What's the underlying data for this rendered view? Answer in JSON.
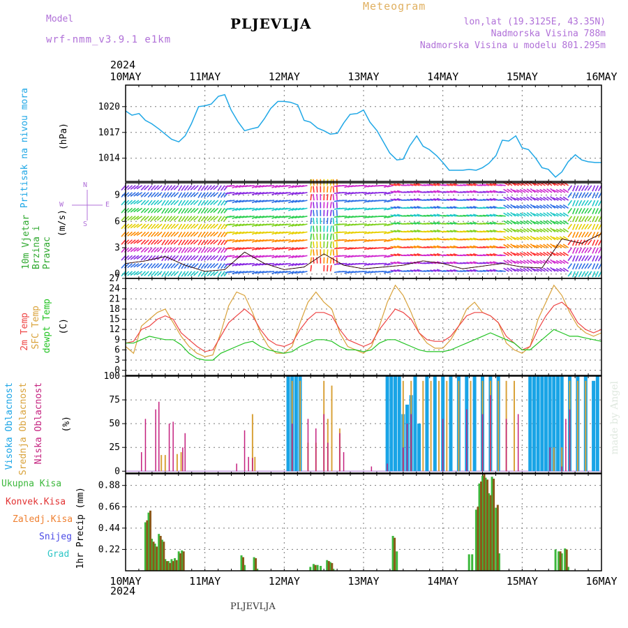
{
  "header": {
    "model_label": "Model",
    "model_name": "wrf-nmm_v3.9.1  e1km",
    "station": "PLJEVLJA",
    "product": "Meteogram",
    "lonlat": "lon,lat (19.3125E, 43.35N)",
    "elevation": "Nadmorska Visina 788m",
    "model_elevation": "Nadmorska Visina u modelu 801.295m",
    "year": "2024",
    "footer_station": "PLJEVLJA",
    "credit": "made by Angel"
  },
  "colors": {
    "pressure": "#1fa7e6",
    "t2m": "#ee4444",
    "tsfc": "#d9a23a",
    "dewpt": "#22c322",
    "high_cloud": "#19a4e6",
    "mid_cloud": "#d9a23a",
    "low_cloud": "#c4207e",
    "total_precip": "#3cb83c",
    "conv_precip": "#e23232",
    "frz_precip": "#ef7f2f",
    "snow": "#4a4ae6",
    "graupel": "#2dc6c6",
    "wind_label": "#2ea82e",
    "compass": "#b070d8"
  },
  "chart_data": [
    {
      "type": "line",
      "panel": "pressure",
      "ylabel": "Pritisak na nivou mora",
      "unit": "(hPa)",
      "yticks": [
        1014,
        1017,
        1020
      ],
      "ylim": [
        1011.3,
        1022.5
      ],
      "x_days": [
        "10MAY",
        "11MAY",
        "12MAY",
        "13MAY",
        "14MAY",
        "15MAY",
        "16MAY"
      ],
      "series": [
        {
          "x": [
            0,
            0.08,
            0.17,
            0.25,
            0.33,
            0.42,
            0.5,
            0.58,
            0.67,
            0.75,
            0.83,
            0.92,
            1,
            1.08,
            1.17,
            1.25,
            1.33,
            1.42,
            1.5,
            1.58,
            1.67,
            1.75,
            1.83,
            1.92,
            2,
            2.08,
            2.17,
            2.25,
            2.33,
            2.42,
            2.5,
            2.58,
            2.67,
            2.75,
            2.83,
            2.92,
            3,
            3.08,
            3.17,
            3.25,
            3.33,
            3.42,
            3.5,
            3.58,
            3.67,
            3.75,
            3.83,
            3.92,
            4,
            4.08,
            4.17,
            4.25,
            4.33,
            4.42,
            4.5,
            4.58,
            4.67,
            4.75,
            4.83,
            4.92,
            5,
            5.08,
            5.17,
            5.25,
            5.33,
            5.42,
            5.5,
            5.58,
            5.67,
            5.75,
            5.83,
            5.92,
            6
          ],
          "values": [
            1019.5,
            1019,
            1019.2,
            1018.4,
            1018,
            1017.4,
            1016.8,
            1016.2,
            1015.9,
            1016.6,
            1018,
            1020,
            1020.1,
            1020.3,
            1021.2,
            1021.4,
            1019.6,
            1018.2,
            1017.2,
            1017.4,
            1017.6,
            1018.6,
            1019.8,
            1020.6,
            1020.6,
            1020.5,
            1020.2,
            1018.4,
            1018.2,
            1017.5,
            1017.2,
            1016.8,
            1016.9,
            1018.1,
            1019.1,
            1019.2,
            1019.6,
            1018.2,
            1017.2,
            1015.9,
            1014.6,
            1013.8,
            1013.9,
            1015.4,
            1016.6,
            1015.4,
            1015.0,
            1014.3,
            1013.5,
            1012.6,
            1012.6,
            1012.6,
            1012.7,
            1012.6,
            1012.9,
            1013.4,
            1014.3,
            1016.1,
            1016.0,
            1016.6,
            1015.2,
            1015.0,
            1014.0,
            1012.9,
            1012.7,
            1011.8,
            1012.4,
            1013.6,
            1014.4,
            1013.8,
            1013.6,
            1013.5,
            1013.5
          ]
        }
      ]
    },
    {
      "type": "vector",
      "panel": "wind",
      "ylabel": "10m Vjetar Brzina i Pravac",
      "unit": "(m/s)",
      "compass": [
        "W",
        "E",
        "N",
        "S"
      ],
      "yticks": [
        0,
        3,
        6,
        9
      ],
      "ylim": [
        -0.5,
        10.4
      ],
      "series": [
        {
          "name": "speed",
          "x": [
            0,
            0.25,
            0.5,
            0.75,
            1,
            1.25,
            1.5,
            1.75,
            2,
            2.25,
            2.5,
            2.75,
            3,
            3.25,
            3.5,
            3.75,
            4,
            4.25,
            4.5,
            4.75,
            5,
            5.25,
            5.5,
            5.75,
            6
          ],
          "values": [
            1.2,
            1.5,
            2.0,
            1.0,
            0.3,
            0.5,
            2.5,
            1.2,
            0.5,
            0.8,
            2.3,
            1.0,
            0.6,
            0.8,
            1.0,
            1.5,
            1.2,
            0.6,
            0.9,
            1.2,
            0.8,
            0.7,
            4.0,
            3.5,
            4.6
          ]
        }
      ],
      "direction_regimes": [
        {
          "from": 0.0,
          "to": 0.3,
          "deg": 230
        },
        {
          "from": 0.3,
          "to": 1.3,
          "deg": 220
        },
        {
          "from": 1.3,
          "to": 2.3,
          "deg": 255
        },
        {
          "from": 2.3,
          "to": 2.7,
          "deg": 0
        },
        {
          "from": 2.7,
          "to": 3.4,
          "deg": 260
        },
        {
          "from": 3.4,
          "to": 4.8,
          "deg": 280
        },
        {
          "from": 4.8,
          "to": 5.6,
          "deg": 300
        },
        {
          "from": 5.6,
          "to": 6.0,
          "deg": 210
        }
      ]
    },
    {
      "type": "line",
      "panel": "temperature",
      "ylabel_lines": [
        "2m Temp",
        "SFC Temp",
        "dewpt Temp"
      ],
      "unit": "(C)",
      "yticks": [
        0,
        3,
        6,
        9,
        12,
        15,
        18,
        21,
        24,
        27
      ],
      "ylim": [
        -1.5,
        27
      ],
      "x": [
        0,
        0.1,
        0.2,
        0.3,
        0.4,
        0.5,
        0.6,
        0.7,
        0.8,
        0.9,
        1,
        1.1,
        1.2,
        1.3,
        1.4,
        1.5,
        1.6,
        1.7,
        1.8,
        1.9,
        2,
        2.1,
        2.2,
        2.3,
        2.4,
        2.5,
        2.6,
        2.7,
        2.8,
        2.9,
        3,
        3.1,
        3.2,
        3.3,
        3.4,
        3.5,
        3.6,
        3.7,
        3.8,
        3.9,
        4,
        4.1,
        4.2,
        4.3,
        4.4,
        4.5,
        4.6,
        4.7,
        4.8,
        4.9,
        5,
        5.1,
        5.2,
        5.3,
        5.4,
        5.5,
        5.6,
        5.7,
        5.8,
        5.9,
        6
      ],
      "series": [
        {
          "name": "2m Temp",
          "values": [
            8,
            8.5,
            12,
            13,
            15,
            16,
            15,
            11,
            9,
            7,
            5.5,
            6,
            10,
            14,
            16,
            18,
            16,
            12,
            9,
            7.5,
            7,
            8,
            12,
            15,
            17,
            17,
            16,
            12,
            9,
            8,
            7,
            8,
            12,
            15,
            18,
            17,
            15,
            11,
            9,
            8.5,
            8.5,
            10,
            13,
            16,
            17,
            17,
            16,
            14,
            10,
            8,
            6,
            7,
            12,
            16,
            19,
            20,
            18,
            14,
            12,
            11,
            12
          ]
        },
        {
          "name": "SFC Temp",
          "values": [
            7,
            5,
            13,
            15,
            17,
            18,
            14,
            10,
            7,
            5,
            4,
            4.5,
            11,
            19,
            23,
            22,
            17,
            11,
            7,
            5,
            5,
            7,
            14,
            20,
            23,
            20,
            18,
            11,
            7,
            6,
            5,
            7,
            13,
            20,
            25,
            22,
            17,
            11,
            8,
            6.5,
            6.5,
            9,
            13,
            18,
            20,
            17,
            16,
            14,
            8,
            6,
            5,
            7,
            15,
            20,
            25,
            22,
            17,
            13,
            11,
            10,
            11
          ]
        },
        {
          "name": "dewpt Temp",
          "values": [
            8,
            8,
            9,
            10,
            9.5,
            9,
            9,
            7.5,
            5,
            3.5,
            3,
            3,
            5,
            6,
            7,
            8,
            8.5,
            7,
            6,
            5.5,
            5,
            5.5,
            7,
            8,
            9,
            9,
            8.5,
            7,
            6,
            6,
            5.5,
            6,
            8,
            9,
            9,
            8,
            7,
            6,
            5.5,
            5.5,
            5.5,
            6,
            7,
            8,
            9,
            10,
            11,
            10,
            9,
            8,
            6,
            6,
            8,
            10,
            12,
            11,
            10,
            10,
            9.5,
            9,
            8.5
          ]
        }
      ]
    },
    {
      "type": "bar",
      "panel": "cloud",
      "ylabel_lines": [
        "Visoka Oblacnost",
        "Srednja Oblacnost",
        "Niska Oblacnost"
      ],
      "unit": "(%)",
      "yticks": [
        0,
        25,
        50,
        75,
        100
      ],
      "ylim": [
        -2,
        100
      ],
      "series": [
        {
          "name": "Niska Oblacnost",
          "x": [
            0.2,
            0.25,
            0.38,
            0.42,
            0.55,
            0.6,
            0.72,
            0.75,
            1.4,
            1.5,
            1.55,
            1.6,
            2.1,
            2.3,
            2.4,
            2.5,
            2.55,
            2.7,
            2.75,
            3.1,
            3.3,
            3.5,
            3.55,
            3.6,
            4.0,
            4.3,
            4.5,
            4.6,
            4.8,
            4.95,
            5.35,
            5.5,
            5.55,
            5.6
          ],
          "values": [
            20,
            55,
            65,
            73,
            50,
            52,
            25,
            40,
            8,
            43,
            15,
            14,
            50,
            55,
            45,
            60,
            30,
            40,
            20,
            5,
            8,
            25,
            50,
            60,
            55,
            65,
            60,
            80,
            55,
            60,
            25,
            5,
            55,
            65
          ]
        },
        {
          "name": "Srednja Oblacnost",
          "x": [
            0.45,
            0.5,
            0.65,
            0.7,
            1.6,
            1.63,
            2.1,
            2.2,
            2.3,
            2.4,
            2.5,
            2.55,
            2.6,
            2.7,
            3.5,
            3.6,
            3.75,
            3.85,
            3.95,
            4.05,
            4.2,
            4.35,
            4.5,
            4.6,
            4.7,
            4.8,
            4.9,
            5.4,
            5.5,
            5.6,
            5.7,
            5.8
          ],
          "values": [
            17,
            17,
            18,
            20,
            60,
            15,
            95,
            95,
            30,
            30,
            95,
            55,
            90,
            45,
            95,
            95,
            95,
            95,
            95,
            95,
            95,
            95,
            95,
            95,
            95,
            95,
            95,
            25,
            25,
            95,
            95,
            95
          ]
        },
        {
          "name": "Visoka Oblacnost",
          "x": [
            2.05,
            2.1,
            2.15,
            2.2,
            3.3,
            3.35,
            3.4,
            3.45,
            3.5,
            3.55,
            3.6,
            3.65,
            3.7,
            3.8,
            3.9,
            4.0,
            4.1,
            4.2,
            4.3,
            4.4,
            4.5,
            4.6,
            4.7,
            5.1,
            5.15,
            5.2,
            5.25,
            5.3,
            5.35,
            5.4,
            5.45,
            5.5,
            5.6,
            5.7,
            5.8,
            5.9,
            5.95
          ],
          "values": [
            100,
            100,
            100,
            100,
            100,
            100,
            100,
            100,
            60,
            70,
            80,
            100,
            50,
            100,
            100,
            100,
            100,
            100,
            100,
            100,
            100,
            100,
            100,
            100,
            100,
            100,
            100,
            100,
            100,
            100,
            100,
            100,
            100,
            100,
            100,
            95,
            100
          ]
        }
      ]
    },
    {
      "type": "bar",
      "panel": "precip",
      "ylabel": "1hr Precip (mm)",
      "legend": [
        "Ukupna Kisa",
        "Konvek.Kisa",
        "Zaledj.Kisa",
        "Snijeg",
        "Grad"
      ],
      "yticks": [
        0.22,
        0.44,
        0.66,
        0.88
      ],
      "ylim": [
        0,
        1.0
      ],
      "x_days": [
        "10MAY",
        "11MAY",
        "12MAY",
        "13MAY",
        "14MAY",
        "15MAY",
        "16MAY"
      ],
      "series": [
        {
          "name": "Ukupna Kisa",
          "x": [
            0.25,
            0.29,
            0.33,
            0.37,
            0.42,
            0.46,
            0.5,
            0.54,
            0.58,
            0.62,
            0.67,
            0.71,
            1.46,
            1.5,
            1.62,
            1.66,
            2.33,
            2.37,
            2.42,
            2.46,
            2.54,
            2.58,
            2.62,
            3.37,
            3.42,
            4.33,
            4.37,
            4.42,
            4.46,
            4.5,
            4.54,
            4.58,
            4.62,
            4.67,
            4.71,
            5.42,
            5.46,
            5.5,
            5.54,
            5.58
          ],
          "values": [
            0.5,
            0.6,
            0.33,
            0.28,
            0.38,
            0.32,
            0.12,
            0.1,
            0.12,
            0.13,
            0.2,
            0.21,
            0.16,
            0.06,
            0.14,
            0.02,
            0.04,
            0.07,
            0.06,
            0.05,
            0.11,
            0.09,
            0.02,
            0.36,
            0.2,
            0.17,
            0.17,
            0.63,
            0.9,
            0.98,
            0.96,
            0.8,
            0.97,
            0.65,
            0.18,
            0.22,
            0.2,
            0.18,
            0.23,
            0.04
          ]
        },
        {
          "name": "Konvek.Kisa",
          "x": [
            0.25,
            0.29,
            0.33,
            0.37,
            0.42,
            0.46,
            0.5,
            0.54,
            0.58,
            0.62,
            0.67,
            0.71,
            1.46,
            1.62,
            2.37,
            2.54,
            2.58,
            3.37,
            4.42,
            4.46,
            4.5,
            4.54,
            4.58,
            4.62,
            4.67,
            5.46,
            5.54
          ],
          "values": [
            0.52,
            0.62,
            0.3,
            0.25,
            0.36,
            0.3,
            0.1,
            0.08,
            0.1,
            0.11,
            0.18,
            0.2,
            0.14,
            0.13,
            0.06,
            0.1,
            0.08,
            0.34,
            0.66,
            0.92,
            1.0,
            0.94,
            0.78,
            0.95,
            0.68,
            0.2,
            0.22
          ]
        }
      ]
    }
  ]
}
